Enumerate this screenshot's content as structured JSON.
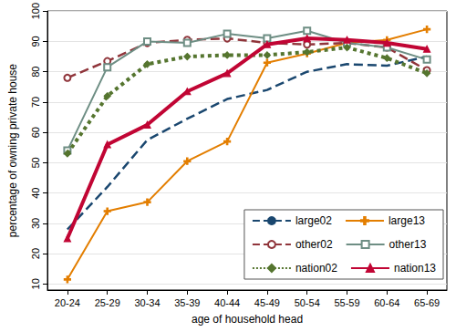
{
  "chart_data": {
    "type": "line",
    "x_label": "age of household head",
    "y_label": "percentage of owning private house",
    "categories": [
      "20-24",
      "25-29",
      "30-34",
      "35-39",
      "40-44",
      "45-49",
      "50-54",
      "55-59",
      "60-64",
      "65-69"
    ],
    "ylim": [
      8,
      100
    ],
    "yticks": [
      10,
      20,
      30,
      40,
      50,
      60,
      70,
      80,
      90,
      100
    ],
    "grid": true,
    "legend": "lower right",
    "series": [
      {
        "name": "large02",
        "color": "#1a476f",
        "line_style": "dashed",
        "marker": "none",
        "values": [
          28,
          42,
          57.5,
          64.5,
          71,
          74,
          80,
          82.5,
          82,
          85
        ]
      },
      {
        "name": "large13",
        "color": "#e37e00",
        "line_style": "solid",
        "marker": "plus",
        "values": [
          11.5,
          34,
          37,
          50.5,
          57,
          83,
          86,
          89.5,
          90.5,
          94
        ]
      },
      {
        "name": "other02",
        "color": "#90353b",
        "line_style": "dashed",
        "marker": "circle",
        "values": [
          78,
          83.5,
          89.5,
          90.5,
          91,
          89.5,
          89,
          89.5,
          88,
          80.5
        ]
      },
      {
        "name": "other13",
        "color": "#6e8e84",
        "line_style": "solid",
        "marker": "square",
        "values": [
          54,
          81.5,
          90,
          89.5,
          92.5,
          91,
          93.5,
          89.5,
          88,
          84
        ]
      },
      {
        "name": "nation02",
        "color": "#55752f",
        "line_style": "dotted",
        "marker": "diamond",
        "values": [
          53,
          72,
          82.5,
          85,
          85.5,
          85.5,
          86.5,
          88,
          84.5,
          79.5
        ]
      },
      {
        "name": "nation13",
        "color": "#c10534",
        "line_style": "solid",
        "marker": "triangle",
        "values": [
          25,
          56,
          62.5,
          73.5,
          79.5,
          89,
          91,
          90.5,
          89.5,
          87.5
        ]
      }
    ]
  }
}
